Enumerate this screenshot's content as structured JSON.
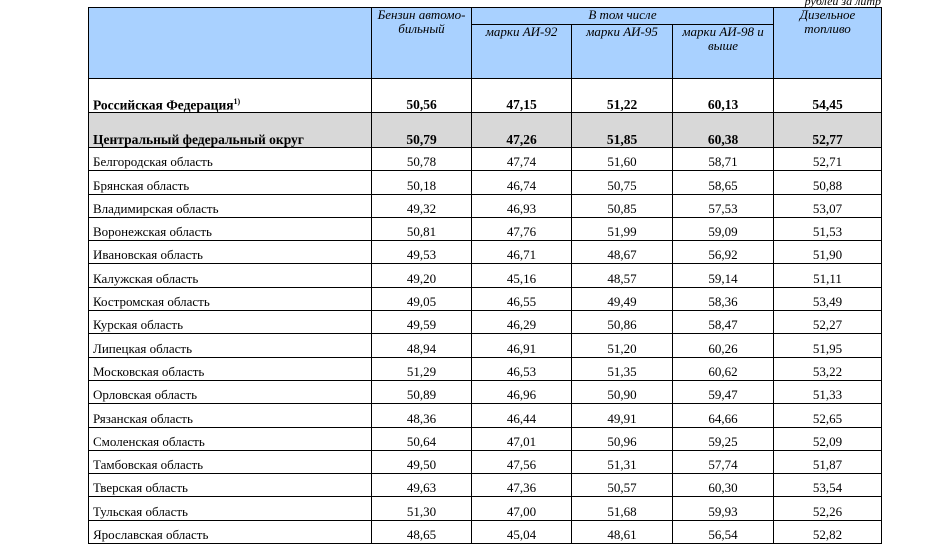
{
  "unit_label": "рублей за литр",
  "header": {
    "corner": "",
    "petrol": "Бензин автомо-бильный",
    "including": "В том числе",
    "ai92": "марки АИ-92",
    "ai95": "марки АИ-95",
    "ai98": "марки АИ-98 и выше",
    "diesel": "Дизельное топливо"
  },
  "russia": {
    "name": "Российская Федерация",
    "footnote": "1)",
    "values": [
      "50,56",
      "47,15",
      "51,22",
      "60,13",
      "54,45"
    ]
  },
  "cfo": {
    "name": "Центральный федеральный округ",
    "values": [
      "50,79",
      "47,26",
      "51,85",
      "60,38",
      "52,77"
    ]
  },
  "regions": [
    {
      "name": "Белгородская область",
      "values": [
        "50,78",
        "47,74",
        "51,60",
        "58,71",
        "52,71"
      ]
    },
    {
      "name": "Брянская область",
      "values": [
        "50,18",
        "46,74",
        "50,75",
        "58,65",
        "50,88"
      ]
    },
    {
      "name": "Владимирская область",
      "values": [
        "49,32",
        "46,93",
        "50,85",
        "57,53",
        "53,07"
      ]
    },
    {
      "name": "Воронежская область",
      "values": [
        "50,81",
        "47,76",
        "51,99",
        "59,09",
        "51,53"
      ]
    },
    {
      "name": "Ивановская область",
      "values": [
        "49,53",
        "46,71",
        "48,67",
        "56,92",
        "51,90"
      ]
    },
    {
      "name": "Калужская область",
      "values": [
        "49,20",
        "45,16",
        "48,57",
        "59,14",
        "51,11"
      ]
    },
    {
      "name": "Костромская область",
      "values": [
        "49,05",
        "46,55",
        "49,49",
        "58,36",
        "53,49"
      ]
    },
    {
      "name": "Курская область",
      "values": [
        "49,59",
        "46,29",
        "50,86",
        "58,47",
        "52,27"
      ]
    },
    {
      "name": "Липецкая область",
      "values": [
        "48,94",
        "46,91",
        "51,20",
        "60,26",
        "51,95"
      ]
    },
    {
      "name": "Московская область",
      "values": [
        "51,29",
        "46,53",
        "51,35",
        "60,62",
        "53,22"
      ]
    },
    {
      "name": "Орловская область",
      "values": [
        "50,89",
        "46,96",
        "50,90",
        "59,47",
        "51,33"
      ]
    },
    {
      "name": "Рязанская область",
      "values": [
        "48,36",
        "46,44",
        "49,91",
        "64,66",
        "52,65"
      ]
    },
    {
      "name": "Смоленская область",
      "values": [
        "50,64",
        "47,01",
        "50,96",
        "59,25",
        "52,09"
      ]
    },
    {
      "name": "Тамбовская область",
      "values": [
        "49,50",
        "47,56",
        "51,31",
        "57,74",
        "51,87"
      ]
    },
    {
      "name": "Тверская область",
      "values": [
        "49,63",
        "47,36",
        "50,57",
        "60,30",
        "53,54"
      ]
    },
    {
      "name": "Тульская область",
      "values": [
        "51,30",
        "47,00",
        "51,68",
        "59,93",
        "52,26"
      ]
    },
    {
      "name": "Ярославская область",
      "values": [
        "48,65",
        "45,04",
        "48,61",
        "56,54",
        "52,82"
      ]
    }
  ],
  "colors": {
    "header_bg": "#a9d1ff",
    "cfo_bg": "#d8d8d8"
  }
}
